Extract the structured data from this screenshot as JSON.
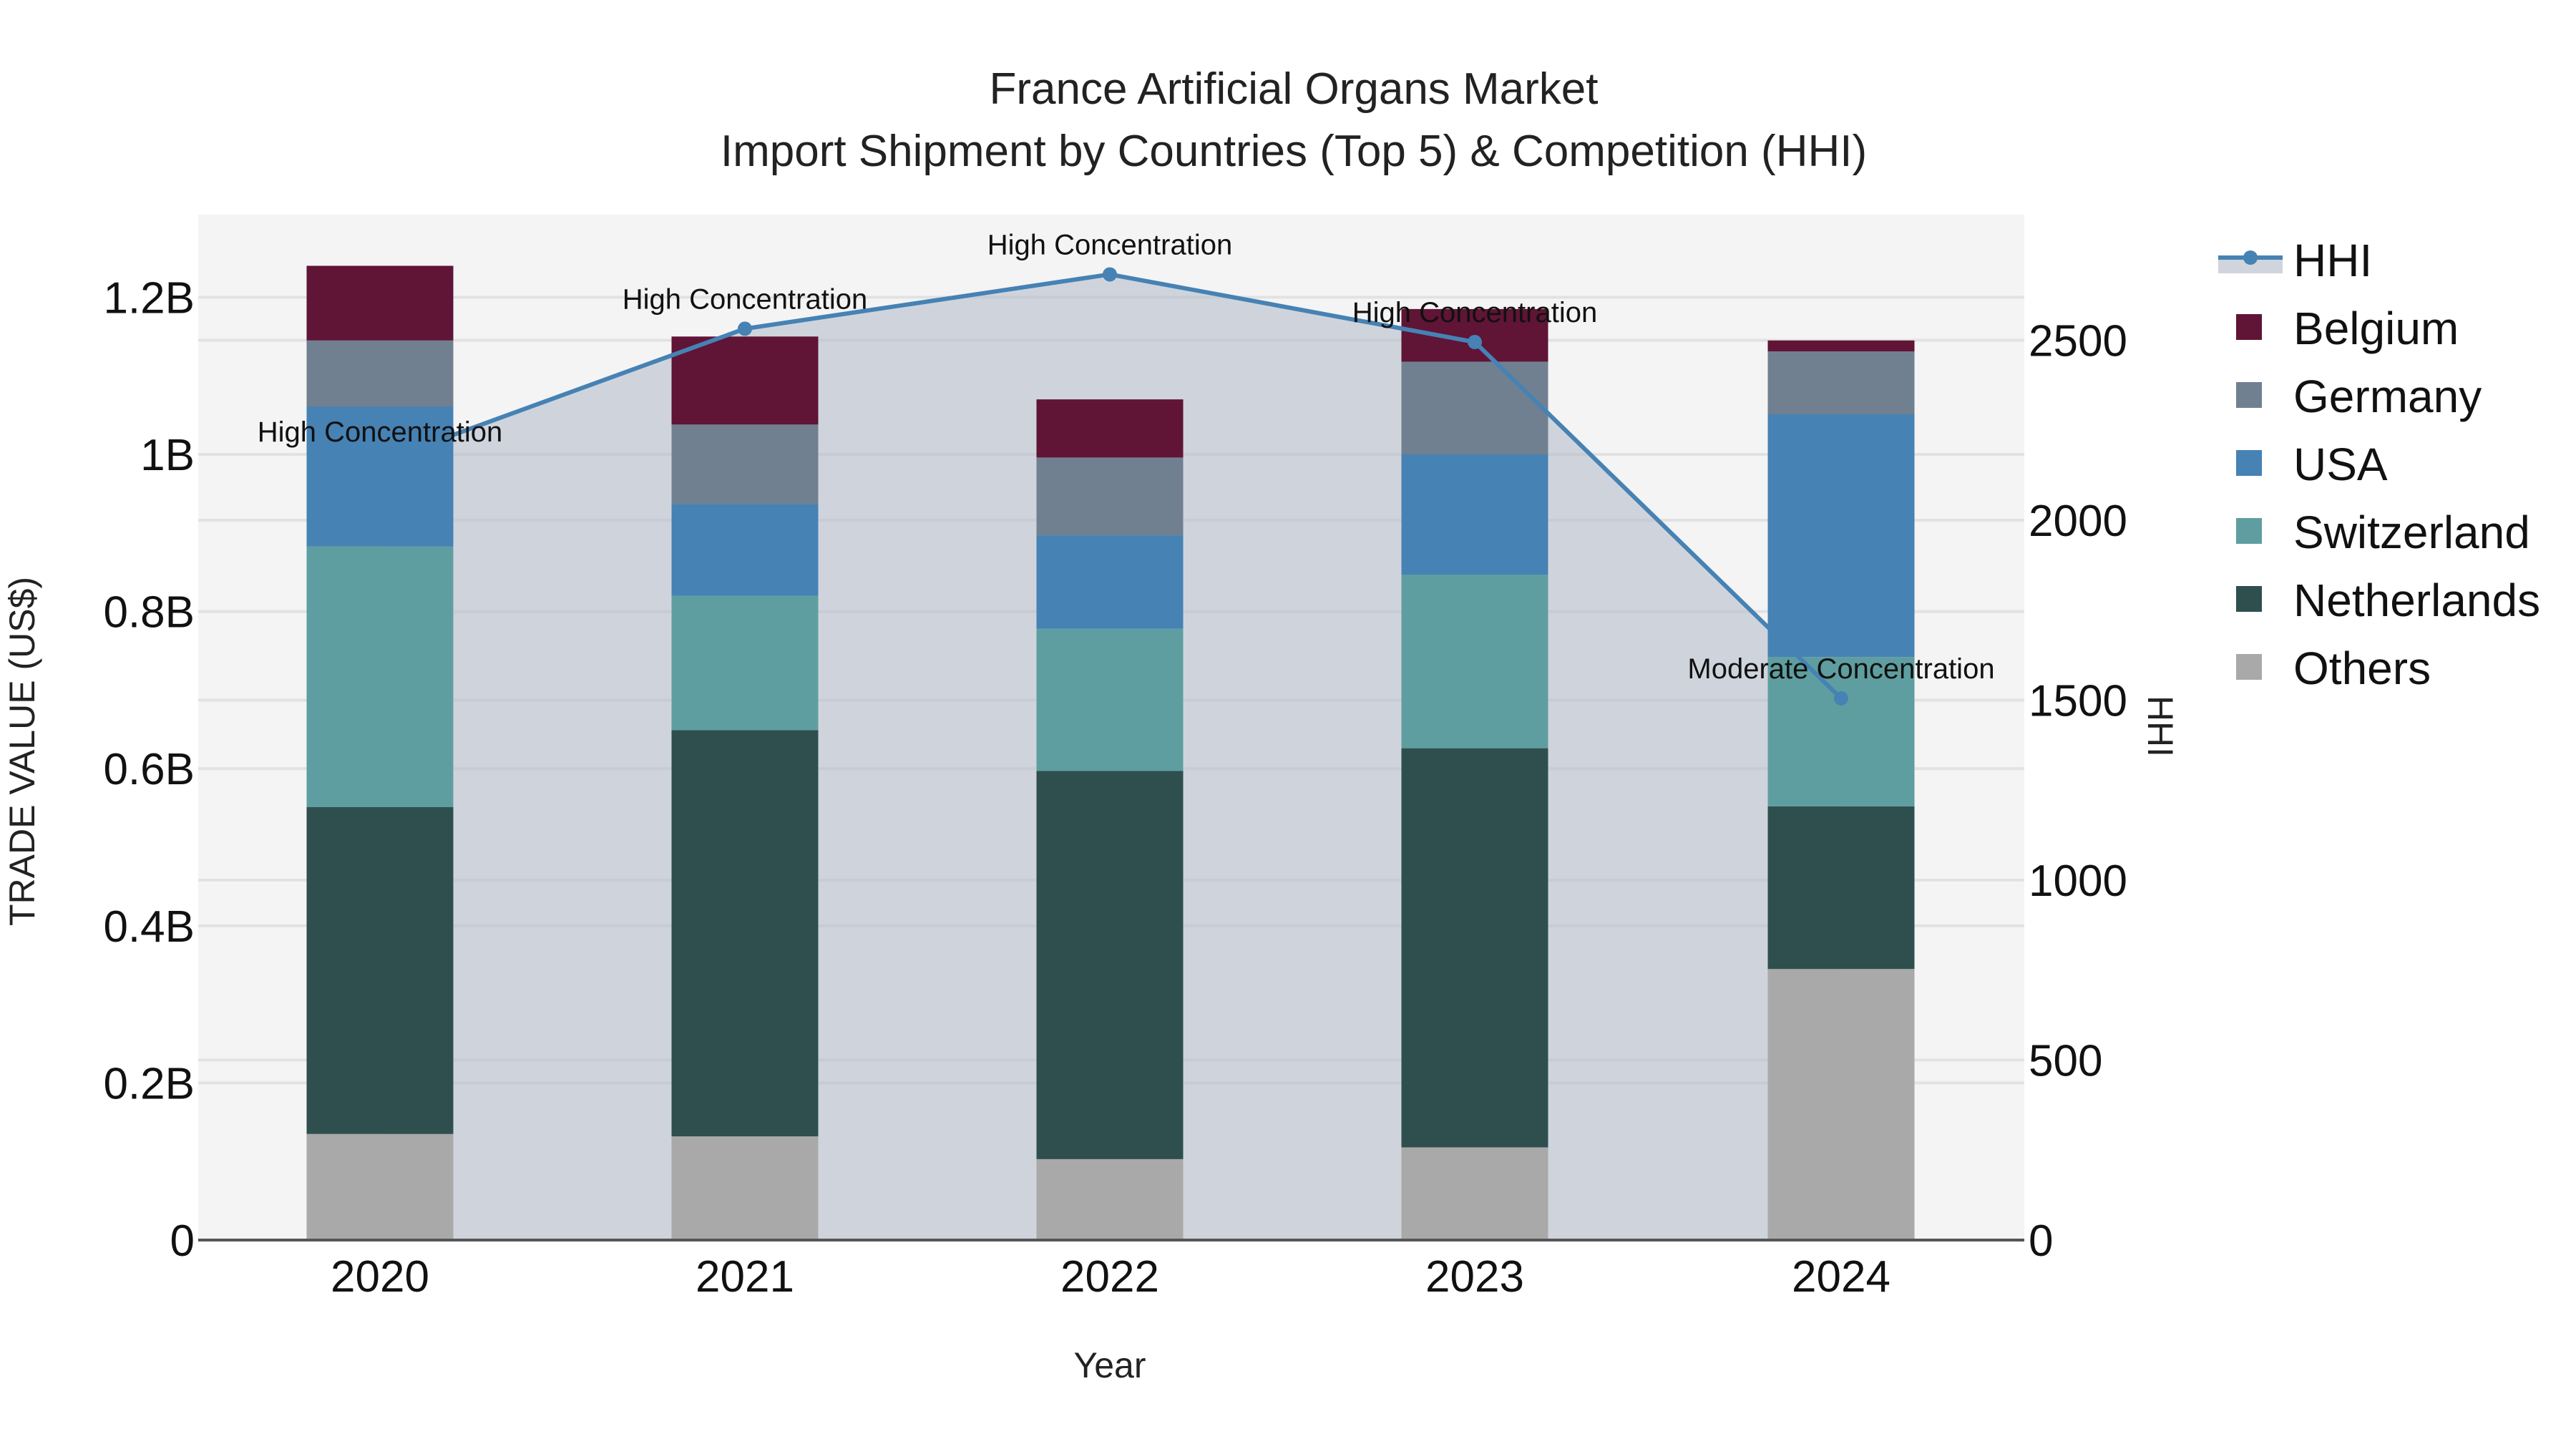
{
  "chart": {
    "title_line1": "France Artificial Organs Market",
    "title_line2": "Import Shipment by Countries (Top 5) & Competition (HHI)",
    "xaxis_title": "Year",
    "yaxis_left_title": "TRADE VALUE (US$)",
    "yaxis_right_title": "HHI",
    "left_ticks": [
      "0",
      "0.2B",
      "0.4B",
      "0.6B",
      "0.8B",
      "1B",
      "1.2B"
    ],
    "right_ticks": [
      "0",
      "500",
      "1000",
      "1500",
      "2000",
      "2500"
    ],
    "x_ticks": [
      "2020",
      "2021",
      "2022",
      "2023",
      "2024"
    ]
  },
  "legend": [
    {
      "name": "HHI",
      "color": "#4682B4",
      "kind": "line"
    },
    {
      "name": "Belgium",
      "color": "#601436",
      "kind": "box"
    },
    {
      "name": "Germany",
      "color": "#708090",
      "kind": "box"
    },
    {
      "name": "USA",
      "color": "#4682B4",
      "kind": "box"
    },
    {
      "name": "Switzerland",
      "color": "#5F9EA0",
      "kind": "box"
    },
    {
      "name": "Netherlands",
      "color": "#2F4F4F",
      "kind": "box"
    },
    {
      "name": "Others",
      "color": "#A9A9A9",
      "kind": "box"
    }
  ],
  "chart_data": {
    "type": "bar",
    "subtype": "stacked bar with line overlay (secondary axis)",
    "title": "France Artificial Organs Market\nImport Shipment by Countries (Top 5) & Competition (HHI)",
    "xlabel": "Year",
    "ylabel": "TRADE VALUE (US$)",
    "y2label": "HHI",
    "categories": [
      "2020",
      "2021",
      "2022",
      "2023",
      "2024"
    ],
    "ylim": [
      0,
      1.3
    ],
    "y_unit": "B (billions US$)",
    "y2lim": [
      0,
      2840
    ],
    "grid": true,
    "legend_position": "right",
    "series": [
      {
        "name": "Others",
        "type": "bar",
        "color": "#A9A9A9",
        "values": [
          0.135,
          0.132,
          0.103,
          0.118,
          0.345
        ]
      },
      {
        "name": "Netherlands",
        "type": "bar",
        "color": "#2F4F4F",
        "values": [
          0.416,
          0.517,
          0.494,
          0.508,
          0.207
        ]
      },
      {
        "name": "Switzerland",
        "type": "bar",
        "color": "#5F9EA0",
        "values": [
          0.332,
          0.171,
          0.181,
          0.221,
          0.19
        ]
      },
      {
        "name": "USA",
        "type": "bar",
        "color": "#4682B4",
        "values": [
          0.178,
          0.117,
          0.119,
          0.153,
          0.309
        ]
      },
      {
        "name": "Germany",
        "type": "bar",
        "color": "#708090",
        "values": [
          0.084,
          0.101,
          0.099,
          0.118,
          0.08
        ]
      },
      {
        "name": "Belgium",
        "type": "bar",
        "color": "#601436",
        "values": [
          0.095,
          0.112,
          0.074,
          0.067,
          0.014
        ]
      },
      {
        "name": "HHI",
        "type": "line",
        "axis": "y2",
        "color": "#4682B4",
        "values": [
          2163,
          2532,
          2683,
          2495,
          1505
        ]
      }
    ],
    "totals": [
      1.24,
      1.15,
      1.07,
      1.185,
      1.145
    ],
    "annotations": [
      "High Concentration",
      "High Concentration",
      "High Concentration",
      "High Concentration",
      "Moderate Concentration"
    ]
  }
}
